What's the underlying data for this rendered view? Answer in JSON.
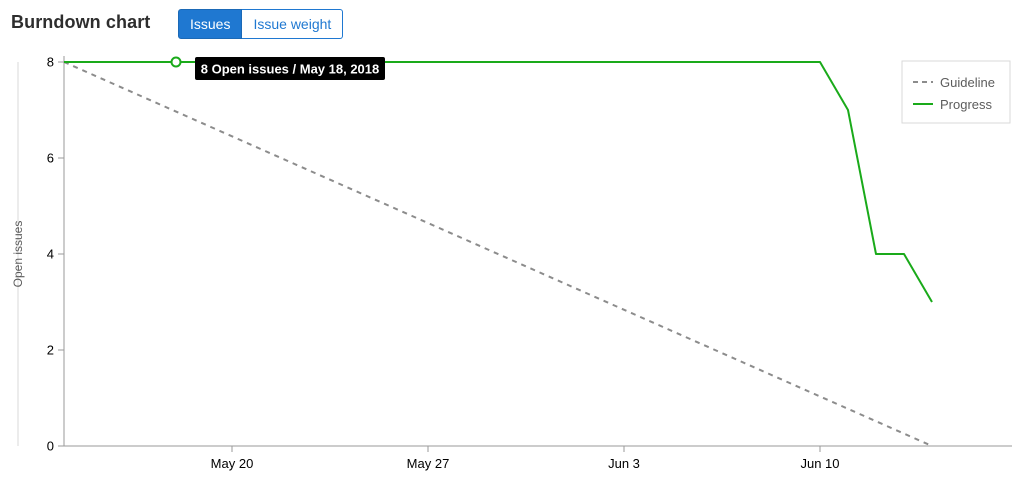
{
  "header": {
    "title": "Burndown chart",
    "toggle_issues": "Issues",
    "toggle_weight": "Issue weight",
    "active_toggle": "Issues"
  },
  "tooltip": {
    "text": "8 Open issues / May 18, 2018"
  },
  "colors": {
    "progress": "#1aaa1a",
    "guideline": "#8c8c8c",
    "accent": "#1f78d1",
    "tooltip_bg": "#000000"
  },
  "chart_data": {
    "type": "line",
    "title": "",
    "xlabel": "",
    "ylabel": "Open issues",
    "ylim": [
      0,
      8
    ],
    "y_ticks": [
      0,
      2,
      4,
      6,
      8
    ],
    "x_ticks": [
      {
        "label": "May 20",
        "date": "2018-05-20"
      },
      {
        "label": "May 27",
        "date": "2018-05-27"
      },
      {
        "label": "Jun 3",
        "date": "2018-06-03"
      },
      {
        "label": "Jun 10",
        "date": "2018-06-10"
      }
    ],
    "xlim": [
      "2018-05-14",
      "2018-06-19"
    ],
    "legend": {
      "position": "top-right",
      "entries": [
        "Guideline",
        "Progress"
      ]
    },
    "series": [
      {
        "name": "Guideline",
        "style": "dashed",
        "points": [
          {
            "x": "2018-05-14",
            "y": 8
          },
          {
            "x": "2018-06-14",
            "y": 0
          }
        ]
      },
      {
        "name": "Progress",
        "style": "solid",
        "points": [
          {
            "x": "2018-05-14",
            "y": 8
          },
          {
            "x": "2018-05-15",
            "y": 8
          },
          {
            "x": "2018-05-16",
            "y": 8
          },
          {
            "x": "2018-05-17",
            "y": 8
          },
          {
            "x": "2018-05-18",
            "y": 8
          },
          {
            "x": "2018-05-19",
            "y": 8
          },
          {
            "x": "2018-05-20",
            "y": 8
          },
          {
            "x": "2018-05-27",
            "y": 8
          },
          {
            "x": "2018-06-03",
            "y": 8
          },
          {
            "x": "2018-06-10",
            "y": 8
          },
          {
            "x": "2018-06-11",
            "y": 7
          },
          {
            "x": "2018-06-12",
            "y": 4
          },
          {
            "x": "2018-06-13",
            "y": 4
          },
          {
            "x": "2018-06-14",
            "y": 3
          }
        ]
      }
    ],
    "highlight": {
      "x": "2018-05-18",
      "y": 8
    }
  }
}
